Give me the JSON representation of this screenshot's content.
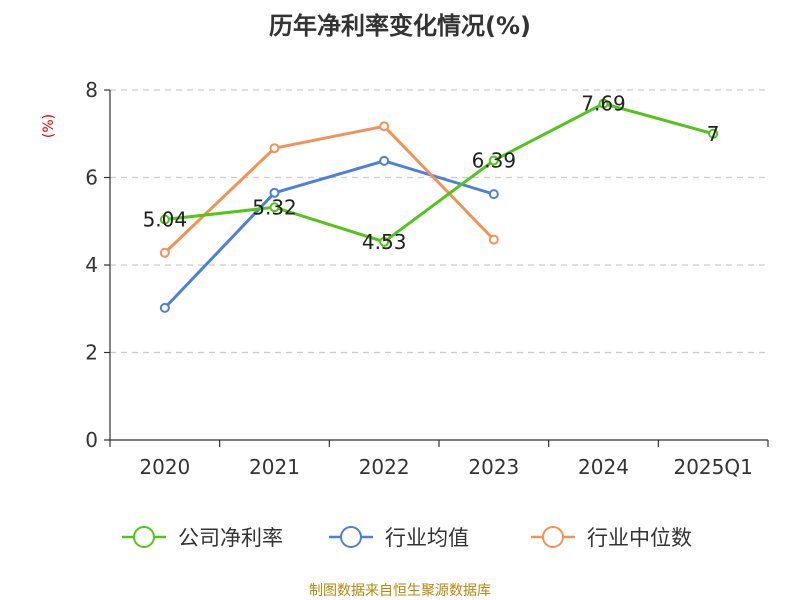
{
  "chart_data": {
    "type": "line",
    "title": "历年净利率变化情况(%)",
    "ylabel": "(%)",
    "categories": [
      "2020",
      "2021",
      "2022",
      "2023",
      "2024",
      "2025Q1"
    ],
    "ylim": [
      0,
      8
    ],
    "yticks": [
      0,
      2,
      4,
      6,
      8
    ],
    "grid": true,
    "legend_position": "bottom",
    "series": [
      {
        "name": "公司净利率",
        "color": "#52c41a",
        "values": [
          5.04,
          5.32,
          4.53,
          6.39,
          7.69,
          7
        ],
        "labels": [
          "5.04",
          "5.32",
          "4.53",
          "6.39",
          "7.69",
          "7"
        ]
      },
      {
        "name": "行业均值",
        "color": "#4e7fdc",
        "values": [
          3.02,
          5.65,
          6.38,
          5.62,
          null,
          null
        ]
      },
      {
        "name": "行业中位数",
        "color": "#f39157",
        "values": [
          4.28,
          6.67,
          7.17,
          4.58,
          null,
          null
        ]
      }
    ],
    "source": "制图数据来自恒生聚源数据库"
  }
}
